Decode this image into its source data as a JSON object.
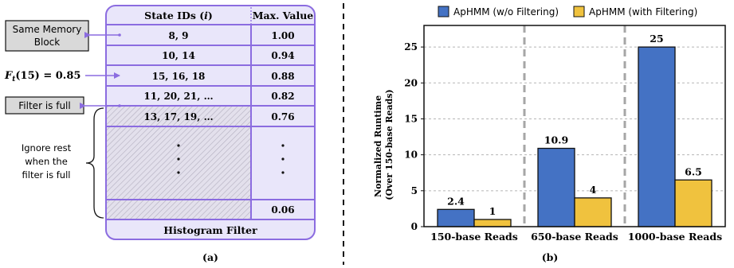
{
  "panel_a": {
    "header_state": "State IDs (",
    "header_state_var": "i",
    "header_state_close": ")",
    "header_max": "Max. Value",
    "rows": [
      {
        "ids": "8, 9",
        "value": "1.00"
      },
      {
        "ids": "10, 14",
        "value": "0.94"
      },
      {
        "ids": "15, 16, 18",
        "value": "0.88"
      },
      {
        "ids": "11, 20, 21, …",
        "value": "0.82"
      },
      {
        "ids": "13, 17, 19, …",
        "value": "0.76"
      },
      {
        "ids": "",
        "value": "0.06"
      }
    ],
    "ellipsis": ":",
    "footer": "Histogram Filter",
    "caption": "(a)",
    "callouts": {
      "same_memory_line1": "Same Memory",
      "same_memory_line2": "Block",
      "ft_label_main": "F",
      "ft_label_sub": "t",
      "ft_label_rest": "(15) = 0.85",
      "filter_full": "Filter is full",
      "ignore_line1": "Ignore rest",
      "ignore_line2": "when the",
      "ignore_line3": "filter is full"
    }
  },
  "chart_data": {
    "type": "bar",
    "categories": [
      "150-base Reads",
      "650-base Reads",
      "1000-base Reads"
    ],
    "series": [
      {
        "name": "ApHMM (w/o Filtering)",
        "color": "#4472c4",
        "values": [
          2.4,
          10.9,
          25
        ],
        "labels": [
          "2.4",
          "10.9",
          "25"
        ]
      },
      {
        "name": "ApHMM (with Filtering)",
        "color": "#f0c23e",
        "values": [
          1,
          4,
          6.5
        ],
        "labels": [
          "1",
          "4",
          "6.5"
        ]
      }
    ],
    "ylabel_line1": "Normalized Runtime",
    "ylabel_line2": "(Over 150-base Reads)",
    "ylim": [
      0,
      28
    ],
    "yticks": [
      "0",
      "5",
      "10",
      "15",
      "20",
      "25"
    ],
    "grid": true,
    "legend_position": "top",
    "caption": "(b)"
  },
  "colors": {
    "accent_purple": "#8b6ce0",
    "table_fill": "#e9e6fa",
    "callout_fill": "#d9d9d9"
  }
}
